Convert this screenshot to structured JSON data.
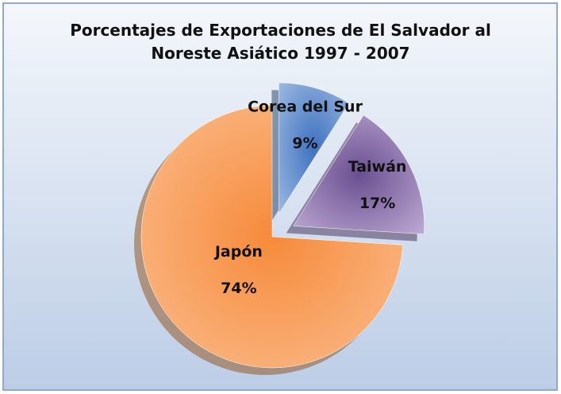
{
  "chart_data": {
    "type": "pie",
    "title": "Porcentajes de Exportaciones de El Salvador al Noreste Asiático 1997 - 2007",
    "categories": [
      "Corea del Sur",
      "Taiwán",
      "Japón"
    ],
    "values": [
      9,
      17,
      74
    ],
    "value_labels": [
      "9%",
      "17%",
      "74%"
    ],
    "colors": [
      "#4f81bd",
      "#8064a2",
      "#f79646"
    ],
    "exploded": [
      true,
      true,
      false
    ]
  }
}
